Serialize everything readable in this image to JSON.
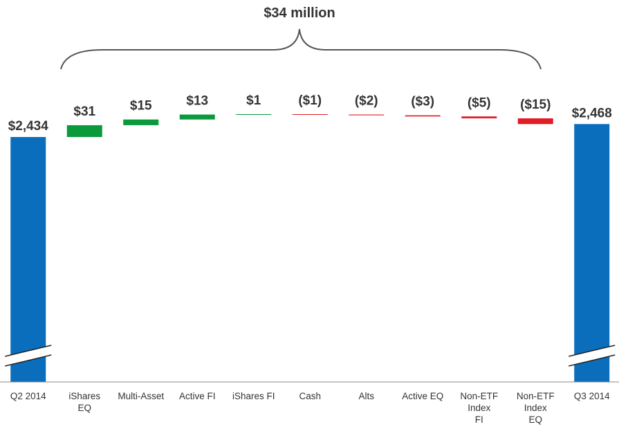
{
  "chart_data": {
    "type": "bar",
    "subtype": "waterfall",
    "total_change_label": "$34 million",
    "categories": [
      [
        "Q2 2014"
      ],
      [
        "iShares",
        "EQ"
      ],
      [
        "Multi-Asset"
      ],
      [
        "Active FI"
      ],
      [
        "iShares FI"
      ],
      [
        "Cash"
      ],
      [
        "Alts"
      ],
      [
        "Active EQ"
      ],
      [
        "Non-ETF",
        "Index",
        "FI"
      ],
      [
        "Non-ETF",
        "Index",
        "EQ"
      ],
      [
        "Q3 2014"
      ]
    ],
    "values": [
      2434,
      31,
      15,
      13,
      1,
      -1,
      -2,
      -3,
      -5,
      -15,
      2468
    ],
    "labels": [
      "$2,434",
      "$31",
      "$15",
      "$13",
      "$1",
      "($1)",
      "($2)",
      "($3)",
      "($5)",
      "($15)",
      "$2,468"
    ],
    "kinds": [
      "total",
      "delta",
      "delta",
      "delta",
      "delta",
      "delta",
      "delta",
      "delta",
      "delta",
      "delta",
      "total"
    ],
    "axis_break": true,
    "grid": false,
    "legend": "none",
    "colors": {
      "total": "#0a6ebd",
      "increase": "#0a9a3c",
      "decrease": "#e31b23",
      "text": "#333333",
      "axis": "#888888",
      "brace": "#555555"
    }
  }
}
